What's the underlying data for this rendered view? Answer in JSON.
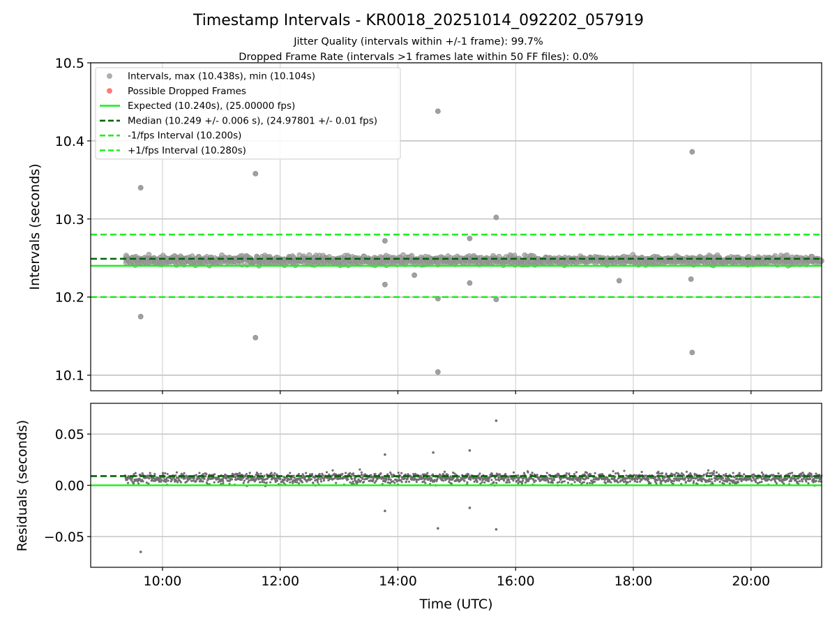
{
  "chart_data": [
    {
      "type": "scatter",
      "panel": "top",
      "title": "Timestamp Intervals - KR0018_20251014_092202_057919",
      "subtitle_1": "Jitter Quality (intervals within +/-1 frame): 99.7%",
      "subtitle_2": "Dropped Frame Rate (intervals >1 frames late within 50 FF files): 0.0%",
      "xlabel": "",
      "ylabel": "Intervals (seconds)",
      "xlim_hours": [
        8.78,
        21.2
      ],
      "ylim": [
        10.08,
        10.5
      ],
      "yticks": [
        "10.1",
        "10.2",
        "10.3",
        "10.4",
        "10.5"
      ],
      "grid": true,
      "legend_position": "top-left",
      "legend": [
        {
          "label": "Intervals, max (10.438s), min (10.104s)",
          "kind": "marker",
          "color": "#a0a0a0"
        },
        {
          "label": "Possible Dropped Frames",
          "kind": "marker",
          "color": "#ff6666"
        },
        {
          "label": "Expected (10.240s), (25.00000 fps)",
          "kind": "solid",
          "color": "#22ee22"
        },
        {
          "label": "Median (10.249 +/- 0.006 s), (24.97801 +/- 0.01 fps)",
          "kind": "dashed",
          "color": "#006400"
        },
        {
          "label": "-1/fps Interval (10.200s)",
          "kind": "dashed",
          "color": "#22ee22"
        },
        {
          "label": "+1/fps Interval (10.280s)",
          "kind": "dashed",
          "color": "#22ee22"
        }
      ],
      "reference_lines": {
        "expected": 10.24,
        "median": 10.249,
        "minus_1_fps": 10.2,
        "plus_1_fps": 10.28
      },
      "band": {
        "x_start_hours": 9.37,
        "x_end_hours": 21.2,
        "center": 10.247,
        "spread": 0.012
      },
      "outliers": [
        {
          "x": 9.63,
          "y": 10.34
        },
        {
          "x": 9.63,
          "y": 10.175
        },
        {
          "x": 11.58,
          "y": 10.358
        },
        {
          "x": 11.58,
          "y": 10.148
        },
        {
          "x": 14.68,
          "y": 10.438
        },
        {
          "x": 14.68,
          "y": 10.104
        },
        {
          "x": 14.68,
          "y": 10.198
        },
        {
          "x": 15.67,
          "y": 10.302
        },
        {
          "x": 15.67,
          "y": 10.197
        },
        {
          "x": 19.0,
          "y": 10.386
        },
        {
          "x": 19.0,
          "y": 10.129
        },
        {
          "x": 13.78,
          "y": 10.272
        },
        {
          "x": 13.78,
          "y": 10.216
        },
        {
          "x": 15.22,
          "y": 10.275
        },
        {
          "x": 15.22,
          "y": 10.218
        },
        {
          "x": 17.76,
          "y": 10.221
        },
        {
          "x": 18.98,
          "y": 10.223
        },
        {
          "x": 14.28,
          "y": 10.228
        }
      ]
    },
    {
      "type": "scatter",
      "panel": "bottom",
      "xlabel": "Time (UTC)",
      "ylabel": "Residuals (seconds)",
      "xlim_hours": [
        8.78,
        21.2
      ],
      "ylim": [
        -0.08,
        0.08
      ],
      "yticks": [
        "−0.05",
        "0.00",
        "0.05"
      ],
      "xticks": [
        "10:00",
        "12:00",
        "14:00",
        "16:00",
        "18:00",
        "20:00"
      ],
      "grid": true,
      "reference_lines": {
        "expected": 0.0,
        "median": 0.009
      },
      "band": {
        "x_start_hours": 9.37,
        "x_end_hours": 21.2,
        "center": 0.007,
        "spread": 0.012
      },
      "outliers": [
        {
          "x": 9.63,
          "y": -0.065
        },
        {
          "x": 15.67,
          "y": 0.063
        },
        {
          "x": 14.68,
          "y": -0.042
        },
        {
          "x": 15.67,
          "y": -0.043
        },
        {
          "x": 13.78,
          "y": -0.025
        },
        {
          "x": 15.22,
          "y": -0.022
        },
        {
          "x": 14.6,
          "y": 0.032
        },
        {
          "x": 15.22,
          "y": 0.034
        },
        {
          "x": 13.78,
          "y": 0.03
        }
      ]
    }
  ],
  "colors": {
    "scatter_fill": "#a0a0a0",
    "scatter_edge": "#8a8a8a",
    "residual_dot": "#6e6e6e",
    "expected": "#22ee22",
    "median": "#006400",
    "dropped": "#ff6666",
    "grid": "#b0b0b0"
  }
}
